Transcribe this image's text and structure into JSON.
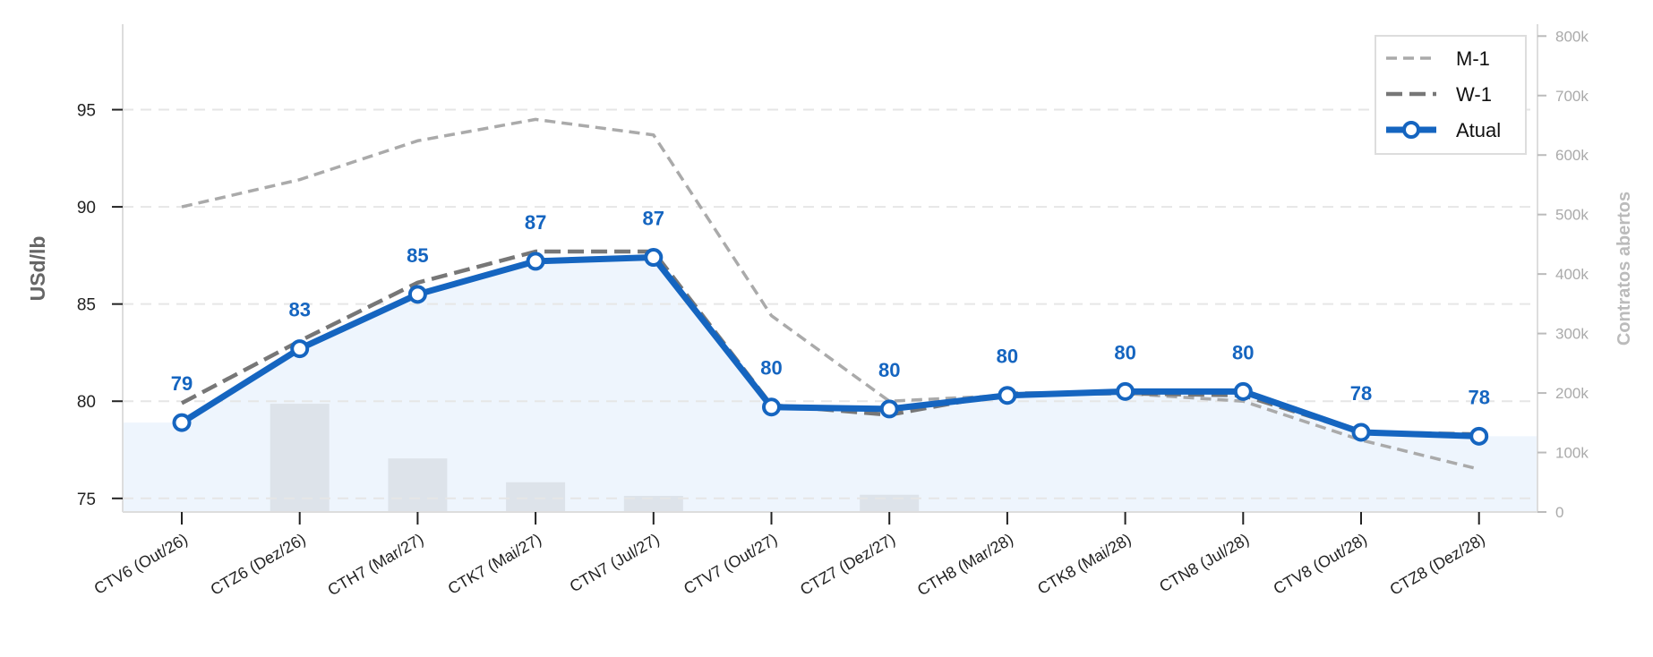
{
  "chart_data": {
    "type": "line",
    "ylabel": "USd/lb",
    "y2label": "Contratos abertos",
    "ylim": [
      74.3,
      99.4
    ],
    "y2lim": [
      0,
      820000
    ],
    "yticks": [
      75,
      80,
      85,
      90,
      95
    ],
    "y2ticks": [
      0,
      100000,
      200000,
      300000,
      400000,
      500000,
      600000,
      700000,
      800000
    ],
    "y2tick_labels": [
      "0",
      "100k",
      "200k",
      "300k",
      "400k",
      "500k",
      "600k",
      "700k",
      "800k"
    ],
    "grid": true,
    "legend_position": "top-right",
    "categories": [
      "CTV6 (Out/26)",
      "CTZ6 (Dez/26)",
      "CTH7 (Mar/27)",
      "CTK7 (Mai/27)",
      "CTN7 (Jul/27)",
      "CTV7 (Out/27)",
      "CTZ7 (Dez/27)",
      "CTH8 (Mar/28)",
      "CTK8 (Mai/28)",
      "CTN8 (Jul/28)",
      "CTV8 (Out/28)",
      "CTZ8 (Dez/28)"
    ],
    "series": [
      {
        "name": "M-1",
        "color": "#aaaaaa",
        "style": "dashed-light",
        "values": [
          90.0,
          91.4,
          93.4,
          94.5,
          93.7,
          84.4,
          80.0,
          80.3,
          80.4,
          80.0,
          78.0,
          76.5
        ]
      },
      {
        "name": "W-1",
        "color": "#777777",
        "style": "dashed",
        "values": [
          79.9,
          83.1,
          86.1,
          87.7,
          87.7,
          79.8,
          79.3,
          80.4,
          80.4,
          80.3,
          78.4,
          78.3
        ]
      },
      {
        "name": "Atual",
        "color": "#1565c0",
        "style": "solid-markers",
        "values": [
          78.9,
          82.7,
          85.5,
          87.2,
          87.4,
          79.7,
          79.6,
          80.3,
          80.5,
          80.5,
          78.4,
          78.2
        ],
        "labels": [
          "79",
          "83",
          "85",
          "87",
          "87",
          "80",
          "80",
          "80",
          "80",
          "80",
          "78",
          "78"
        ]
      }
    ],
    "open_interest": [
      0,
      182000,
      90000,
      50000,
      27000,
      0,
      29000,
      0,
      0,
      0,
      0,
      0
    ],
    "open_interest_color": "#dde3ea",
    "fill_color": "#eef5fd"
  }
}
